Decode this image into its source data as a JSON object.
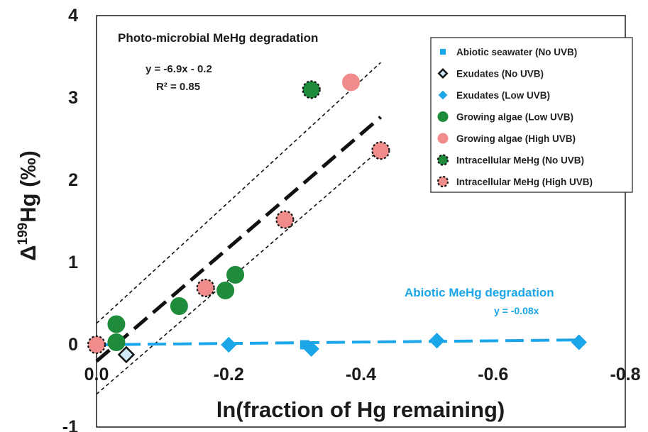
{
  "chart_data": {
    "type": "scatter",
    "xlabel": "ln(fraction of Hg remaining)",
    "ylabel_main": "Δ",
    "ylabel_sup": "199",
    "ylabel_rest": "Hg (‰)",
    "xlim": [
      0.0,
      -0.8
    ],
    "ylim": [
      -1,
      4
    ],
    "x_ticks": [
      0.0,
      -0.2,
      -0.4,
      -0.6,
      -0.8
    ],
    "x_tick_labels": [
      "0.0",
      "-0.2",
      "-0.4",
      "-0.6",
      "-0.8"
    ],
    "y_ticks": [
      -1,
      0,
      1,
      2,
      3,
      4
    ],
    "y_tick_labels": [
      "-1",
      "0",
      "1",
      "2",
      "3",
      "4"
    ],
    "legend_position": "top-right",
    "series": [
      {
        "name": "Abiotic seawater (No UVB)",
        "marker": "square",
        "color": "#1aa6e8",
        "edge": "#1aa6e8",
        "points": [
          [
            -0.315,
            0.0
          ]
        ]
      },
      {
        "name": "Exudates (No UVB)",
        "marker": "diamond-open",
        "color": "#cfe9f7",
        "edge": "#111111",
        "points": [
          [
            -0.045,
            -0.12
          ]
        ]
      },
      {
        "name": "Exudates (Low UVB)",
        "marker": "diamond",
        "color": "#1aa6e8",
        "edge": "#1aa6e8",
        "points": [
          [
            -0.2,
            0.0
          ],
          [
            -0.325,
            -0.05
          ],
          [
            -0.515,
            0.05
          ],
          [
            -0.73,
            0.03
          ]
        ]
      },
      {
        "name": "Growing algae (Low UVB)",
        "marker": "circle",
        "color": "#1f8c3b",
        "edge": "#1f8c3b",
        "points": [
          [
            -0.03,
            0.25
          ],
          [
            -0.03,
            0.03
          ],
          [
            -0.125,
            0.47
          ],
          [
            -0.195,
            0.66
          ],
          [
            -0.21,
            0.85
          ]
        ]
      },
      {
        "name": "Growing algae (High UVB)",
        "marker": "circle",
        "color": "#f08c8c",
        "edge": "#f08c8c",
        "points": [
          [
            -0.385,
            3.19
          ]
        ]
      },
      {
        "name": "Intracellular MeHg (No UVB)",
        "marker": "circle-dashed",
        "color": "#1f8c3b",
        "edge": "#111111",
        "points": [
          [
            -0.325,
            3.1
          ]
        ]
      },
      {
        "name": "Intracellular MeHg (High UVB)",
        "marker": "circle-dashed",
        "color": "#f08c8c",
        "edge": "#111111",
        "points": [
          [
            0.0,
            0.0
          ],
          [
            -0.165,
            0.69
          ],
          [
            -0.285,
            1.52
          ],
          [
            -0.43,
            2.36
          ]
        ]
      }
    ],
    "fits": [
      {
        "label": "Photo-microbial MeHg degradation",
        "equation": "y = -6.9x - 0.2",
        "r2": "R² = 0.85",
        "slope": -6.9,
        "intercept": -0.2,
        "x_range": [
          0.0,
          -0.43
        ],
        "color": "#111111",
        "ci_upper": [
          [
            0.0,
            0.26
          ],
          [
            -0.43,
            3.43
          ]
        ],
        "ci_lower": [
          [
            0.0,
            -0.6
          ],
          [
            -0.43,
            2.38
          ]
        ]
      },
      {
        "label": "Abiotic MeHg degradation",
        "equation": "y = -0.08x",
        "slope": -0.08,
        "intercept": 0.0,
        "x_range": [
          0.0,
          -0.73
        ],
        "color": "#1aa6e8"
      }
    ]
  }
}
